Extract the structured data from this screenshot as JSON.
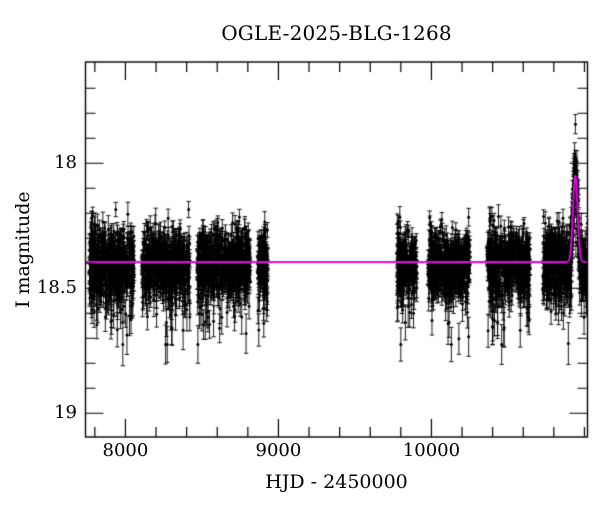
{
  "chart_data": {
    "type": "scatter",
    "title": "OGLE-2025-BLG-1268",
    "xlabel": "HJD - 2450000",
    "ylabel": "I magnitude",
    "x_range": [
      7739,
      11020
    ],
    "y_range_mag": [
      17.595,
      19.095
    ],
    "y_axis_inverted": true,
    "x_major_ticks": [
      8000,
      9000,
      10000
    ],
    "x_tick_labels": [
      "8000",
      "9000",
      "10000"
    ],
    "x_minor_tick_step": 200,
    "y_major_ticks": [
      18,
      18.5,
      19
    ],
    "y_tick_labels": [
      "18",
      "18.5",
      "19"
    ],
    "y_minor_tick_step": 0.1,
    "grid": false,
    "legend": false,
    "background_color": "#ffffff",
    "point_color": "#000000",
    "model_color": "#f000f0",
    "baseline_mag": 18.395,
    "model": {
      "shape": "point-lens magnification peak",
      "t0": 10940,
      "peak_mag": 18.05,
      "sigma_days": 15
    },
    "scatter_sigma_mag": 0.066,
    "faint_tail_max_mag": 0.33,
    "bright_clip_mag": 0.21,
    "typical_error_bar_mag": 0.035,
    "max_error_bar_mag": 0.085,
    "seasons": [
      {
        "t_start": 7762,
        "t_end": 8056,
        "n_points": 500
      },
      {
        "t_start": 8108,
        "t_end": 8422,
        "n_points": 520
      },
      {
        "t_start": 8468,
        "t_end": 8814,
        "n_points": 560
      },
      {
        "t_start": 8866,
        "t_end": 8932,
        "n_points": 120
      },
      {
        "t_start": 9775,
        "t_end": 9905,
        "n_points": 210
      },
      {
        "t_start": 9977,
        "t_end": 10252,
        "n_points": 450
      },
      {
        "t_start": 10363,
        "t_end": 10644,
        "n_points": 470
      },
      {
        "t_start": 10729,
        "t_end": 11020,
        "n_points": 520
      }
    ]
  }
}
